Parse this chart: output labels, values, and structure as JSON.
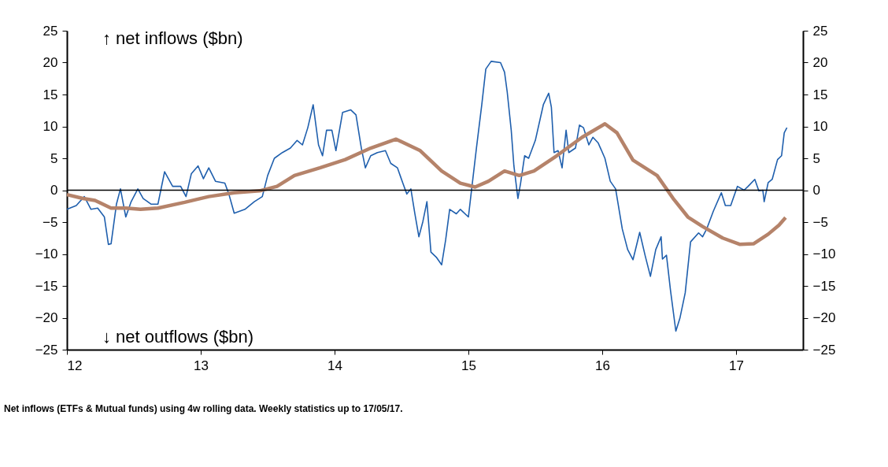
{
  "chart_data": {
    "type": "line",
    "annotations": [
      "↑ net inflows ($bn)",
      "↓ net outflows ($bn)",
      "Net inflows (ETFs & Mutual funds) using 4w rolling data. Weekly statistics up to 17/05/17."
    ],
    "xlim": [
      12,
      17.5
    ],
    "xticks": [
      12,
      13,
      14,
      15,
      16,
      17
    ],
    "ylim": [
      -25,
      25
    ],
    "yticks": [
      -25,
      -20,
      -15,
      -10,
      -5,
      0,
      5,
      10,
      15,
      20,
      25
    ],
    "y2lim": [
      -25,
      25
    ],
    "y2ticks": [
      -25,
      -20,
      -15,
      -10,
      -5,
      0,
      5,
      10,
      15,
      20,
      25
    ],
    "ref_lines": [
      {
        "axis": "y2",
        "value": 0,
        "color": "#000000"
      }
    ],
    "grid": false,
    "legend": false,
    "series": [
      {
        "color": "#1f5fad",
        "x": [
          12.0,
          12.07,
          12.13,
          12.18,
          12.23,
          12.28,
          12.31,
          12.33,
          12.37,
          12.4,
          12.44,
          12.48,
          12.53,
          12.57,
          12.63,
          12.68,
          12.73,
          12.79,
          12.85,
          12.89,
          12.93,
          12.98,
          13.02,
          13.06,
          13.11,
          13.18,
          13.21,
          13.25,
          13.33,
          13.4,
          13.46,
          13.5,
          13.55,
          13.61,
          13.67,
          13.72,
          13.76,
          13.8,
          13.84,
          13.88,
          13.91,
          13.94,
          13.98,
          14.01,
          14.06,
          14.12,
          14.16,
          14.2,
          14.23,
          14.27,
          14.32,
          14.38,
          14.42,
          14.47,
          14.51,
          14.54,
          14.57,
          14.6,
          14.63,
          14.66,
          14.69,
          14.72,
          14.76,
          14.8,
          14.83,
          14.86,
          14.91,
          14.94,
          15.0,
          15.02,
          15.06,
          15.1,
          15.13,
          15.17,
          15.24,
          15.27,
          15.29,
          15.32,
          15.34,
          15.37,
          15.39,
          15.42,
          15.45,
          15.5,
          15.56,
          15.6,
          15.62,
          15.64,
          15.67,
          15.7,
          15.73,
          15.75,
          15.8,
          15.83,
          15.86,
          15.9,
          15.93,
          15.97,
          16.02,
          16.06,
          16.1,
          16.15,
          16.19,
          16.23,
          16.28,
          16.32,
          16.36,
          16.4,
          16.44,
          16.45,
          16.48,
          16.51,
          16.55,
          16.58,
          16.62,
          16.66,
          16.72,
          16.75,
          16.78,
          16.83,
          16.89,
          16.92,
          16.96,
          17.01,
          17.06,
          17.09,
          17.14,
          17.17,
          17.2,
          17.21,
          17.24,
          17.27,
          17.31,
          17.34,
          17.36,
          17.38
        ],
        "values": [
          -3.0,
          -2.4,
          -1.0,
          -3.0,
          -2.8,
          -4.2,
          -8.5,
          -8.4,
          -2.2,
          0.2,
          -4.2,
          -1.8,
          0.2,
          -1.3,
          -2.2,
          -2.2,
          2.9,
          0.6,
          0.6,
          -1.0,
          2.6,
          3.8,
          1.8,
          3.5,
          1.4,
          1.1,
          -0.6,
          -3.6,
          -3.0,
          -1.8,
          -1.0,
          2.3,
          5.0,
          5.9,
          6.6,
          7.8,
          7.1,
          9.8,
          13.4,
          7.1,
          5.4,
          9.4,
          9.4,
          6.2,
          12.2,
          12.6,
          11.8,
          6.6,
          3.5,
          5.4,
          5.9,
          6.2,
          4.2,
          3.5,
          1.1,
          -0.6,
          0.2,
          -3.7,
          -7.3,
          -4.9,
          -1.8,
          -9.7,
          -10.5,
          -11.7,
          -7.8,
          -3.0,
          -3.7,
          -3.0,
          -4.2,
          -0.6,
          6.6,
          13.4,
          19.0,
          20.2,
          20.0,
          18.5,
          15.4,
          9.4,
          3.8,
          -1.3,
          1.1,
          5.4,
          5.0,
          7.8,
          13.4,
          15.2,
          13.0,
          5.9,
          6.2,
          3.5,
          9.4,
          5.9,
          6.6,
          10.2,
          9.8,
          7.1,
          8.3,
          7.4,
          5.0,
          1.4,
          0.2,
          -6.1,
          -9.3,
          -10.9,
          -6.6,
          -10.2,
          -13.5,
          -9.3,
          -7.3,
          -10.8,
          -10.2,
          -15.7,
          -22.1,
          -20.1,
          -16.1,
          -8.1,
          -6.7,
          -7.3,
          -6.1,
          -3.3,
          -0.4,
          -2.4,
          -2.4,
          0.6,
          0,
          0.6,
          1.7,
          -0.1,
          0,
          -1.8,
          1.2,
          1.7,
          4.8,
          5.4,
          9.0,
          9.8
        ]
      },
      {
        "color": "#b5836a",
        "x": [
          12.0,
          12.12,
          12.21,
          12.33,
          12.44,
          12.55,
          12.68,
          12.88,
          13.06,
          13.25,
          13.44,
          13.57,
          13.7,
          13.89,
          14.08,
          14.27,
          14.46,
          14.64,
          14.8,
          14.94,
          15.05,
          15.15,
          15.27,
          15.38,
          15.49,
          15.66,
          15.85,
          16.02,
          16.11,
          16.23,
          16.41,
          16.53,
          16.64,
          16.75,
          16.9,
          17.03,
          17.13,
          17.24,
          17.32,
          17.37
        ],
        "values": [
          -0.7,
          -1.3,
          -1.6,
          -2.8,
          -2.8,
          -3.0,
          -2.8,
          -1.9,
          -1.0,
          -0.4,
          -0.1,
          0.6,
          2.3,
          3.5,
          4.8,
          6.6,
          8.0,
          6.2,
          3.0,
          1.1,
          0.5,
          1.4,
          3.0,
          2.3,
          3.0,
          5.4,
          8.3,
          10.4,
          9.0,
          4.7,
          2.3,
          -1.3,
          -4.2,
          -5.7,
          -7.5,
          -8.5,
          -8.4,
          -6.9,
          -5.5,
          -4.3
        ]
      }
    ]
  }
}
